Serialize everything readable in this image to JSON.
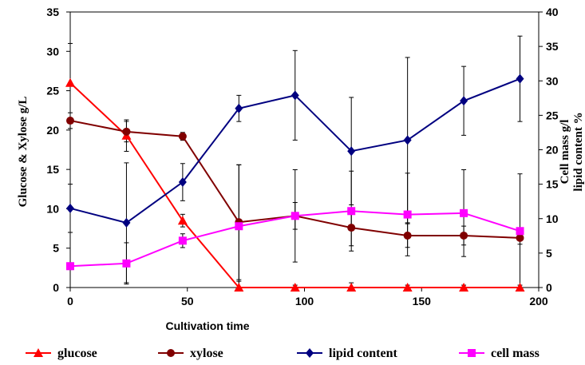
{
  "chart_data": {
    "type": "line",
    "x": [
      0,
      24,
      48,
      72,
      96,
      120,
      144,
      168,
      192
    ],
    "xlabel": "Cultivation time",
    "xlim": [
      0,
      200
    ],
    "x_ticks": [
      "0",
      "50",
      "100",
      "150",
      "200"
    ],
    "ylabel_left": "Glucose & Xylose g/L",
    "ylim_left": [
      0,
      35
    ],
    "y_ticks_left": [
      "0",
      "5",
      "10",
      "15",
      "20",
      "25",
      "30",
      "35"
    ],
    "ylabel_right_line1": "Cell mass g/l",
    "ylabel_right_line2": "lipid content %",
    "ylim_right": [
      0,
      40
    ],
    "y_ticks_right": [
      "0",
      "5",
      "10",
      "15",
      "20",
      "25",
      "30",
      "35",
      "40"
    ],
    "grid": false,
    "legend_position": "bottom",
    "series": [
      {
        "name": "glucose",
        "axis": "left",
        "color": "#ff0000",
        "marker": "triangle",
        "values": [
          26.0,
          19.3,
          8.5,
          0,
          0,
          0,
          0,
          0,
          0
        ],
        "errors": [
          5.0,
          2.0,
          0.8,
          0.8,
          0.3,
          0.6,
          0.3,
          0.3,
          0.3
        ]
      },
      {
        "name": "xylose",
        "axis": "left",
        "color": "#800000",
        "marker": "circle",
        "values": [
          21.2,
          19.8,
          19.2,
          8.3,
          9.1,
          7.6,
          6.6,
          6.6,
          6.3
        ],
        "errors": [
          1.0,
          1.3,
          0.5,
          7.3,
          1.7,
          2.3,
          1.5,
          1.2,
          0.8
        ]
      },
      {
        "name": "lipid content",
        "axis": "right",
        "color": "#000080",
        "marker": "diamond",
        "values": [
          11.5,
          9.4,
          15.3,
          26.0,
          27.9,
          19.8,
          21.4,
          27.1,
          30.3
        ],
        "errors": [
          3.5,
          8.7,
          2.7,
          1.9,
          6.5,
          7.8,
          12.0,
          5.0,
          6.2
        ]
      },
      {
        "name": "cell mass",
        "axis": "right",
        "color": "#ff00ff",
        "marker": "square",
        "values": [
          3.1,
          3.5,
          6.8,
          8.9,
          10.4,
          11.1,
          10.6,
          10.8,
          8.2
        ],
        "errors": [
          0.5,
          3.0,
          1.0,
          8.9,
          6.7,
          5.8,
          6.0,
          6.3,
          8.3
        ]
      }
    ]
  }
}
